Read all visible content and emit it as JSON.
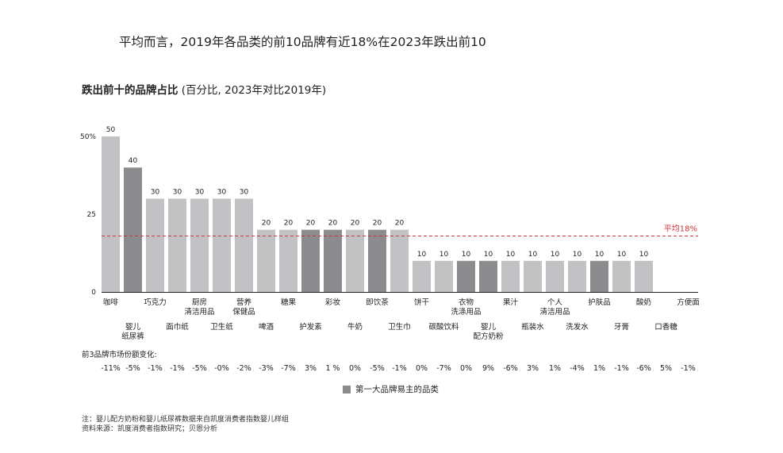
{
  "headline": "平均而言，2019年各品类的前10品牌有近18%在2023年跌出前10",
  "subtitle_bold": "跌出前十的品牌占比",
  "subtitle_rest": " (百分比, 2023年对比2019年)",
  "colors": {
    "light": "#c2c2c4",
    "dark": "#8c8c8e",
    "avg_line": "#d0333a"
  },
  "chart_data": {
    "type": "bar",
    "categories": [
      "咖啡",
      "婴儿纸尿裤",
      "巧克力",
      "面巾纸",
      "厨房清洁用品",
      "卫生纸",
      "营养保健品",
      "啤酒",
      "糖果",
      "护发素",
      "彩妆",
      "牛奶",
      "即饮茶",
      "卫生巾",
      "饼干",
      "碳酸饮料",
      "衣物洗涤用品",
      "婴儿配方奶粉",
      "果汁",
      "瓶装水",
      "个人清洁用品",
      "洗发水",
      "护肤品",
      "牙膏",
      "酸奶",
      "口香糖",
      "方便面"
    ],
    "category_labels": [
      [
        "咖啡"
      ],
      [
        "婴儿",
        "纸尿裤"
      ],
      [
        "巧克力"
      ],
      [
        "面巾纸"
      ],
      [
        "厨房",
        "清洁用品"
      ],
      [
        "卫生纸"
      ],
      [
        "营养",
        "保健品"
      ],
      [
        "啤酒"
      ],
      [
        "糖果"
      ],
      [
        "护发素"
      ],
      [
        "彩妆"
      ],
      [
        "牛奶"
      ],
      [
        "即饮茶"
      ],
      [
        "卫生巾"
      ],
      [
        "饼干"
      ],
      [
        "碳酸饮料"
      ],
      [
        "衣物",
        "洗涤用品"
      ],
      [
        "婴儿",
        "配方奶粉"
      ],
      [
        "果汁"
      ],
      [
        "瓶装水"
      ],
      [
        "个人",
        "清洁用品"
      ],
      [
        "洗发水"
      ],
      [
        "护肤品"
      ],
      [
        "牙膏"
      ],
      [
        "酸奶"
      ],
      [
        "口香糖"
      ],
      [
        "方便面"
      ]
    ],
    "values": [
      50,
      40,
      30,
      30,
      30,
      30,
      30,
      20,
      20,
      20,
      20,
      20,
      20,
      20,
      10,
      10,
      10,
      10,
      10,
      10,
      10,
      10,
      10,
      10,
      10,
      0,
      0
    ],
    "value_labels": [
      "50",
      "40",
      "30",
      "30",
      "30",
      "30",
      "30",
      "20",
      "20",
      "20",
      "20",
      "20",
      "20",
      "20",
      "10",
      "10",
      "10",
      "10",
      "10",
      "10",
      "10",
      "10",
      "10",
      "10",
      "10",
      "",
      ""
    ],
    "top_brand_changed": [
      false,
      true,
      false,
      false,
      false,
      false,
      false,
      false,
      false,
      true,
      true,
      false,
      true,
      false,
      false,
      false,
      true,
      true,
      false,
      false,
      false,
      false,
      true,
      false,
      false,
      false,
      false
    ],
    "y_ticks": [
      "50%",
      "25",
      "0"
    ],
    "y_tick_values": [
      50,
      25,
      0
    ],
    "ylim": [
      0,
      50
    ],
    "average": {
      "value": 18,
      "label": "平均18%"
    },
    "share_change_label": "前3品牌市场份额变化:",
    "share_change": [
      "-11%",
      "-5%",
      "-1%",
      "-1%",
      "-5%",
      "-0%",
      "-2%",
      "-3%",
      "-7%",
      "3%",
      "1 %",
      "0%",
      "-5%",
      "-1%",
      "0%",
      "-7%",
      "0%",
      "9%",
      "-6%",
      "3%",
      "1%",
      "-4%",
      "1%",
      "-1%",
      "-6%",
      "5%",
      "-1%"
    ],
    "legend": "第一大品牌易主的品类"
  },
  "footnote": "注：婴儿配方奶粉和婴儿纸尿裤数据来自凯度消费者指数婴儿样组",
  "source": "资料来源：凯度消费者指数研究；贝恩分析"
}
